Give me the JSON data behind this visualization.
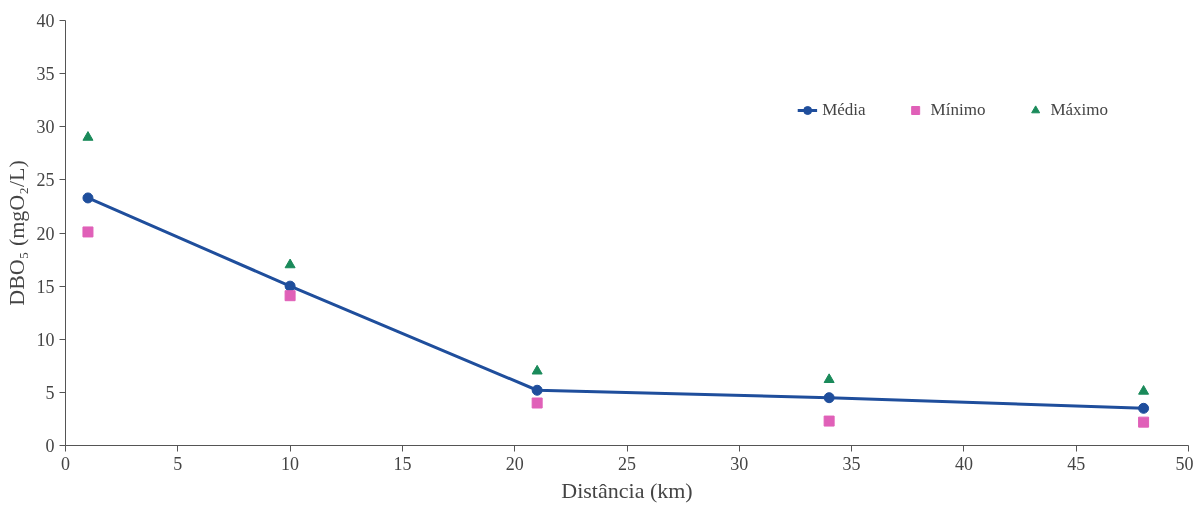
{
  "chart_data": {
    "type": "line",
    "xlabel": "Distância (km)",
    "ylabel": "DBO₅ (mgO₂/L)",
    "x": [
      1,
      10,
      21,
      34,
      48
    ],
    "series": [
      {
        "name": "Média",
        "marker": "circle",
        "color": "#1f4e9c",
        "values": [
          23.3,
          15.0,
          5.2,
          4.5,
          3.5
        ]
      },
      {
        "name": "Mínimo",
        "type": "scatter",
        "marker": "square",
        "color": "#e060b8",
        "values": [
          20.1,
          14.1,
          4.0,
          2.3,
          2.2
        ]
      },
      {
        "name": "Máximo",
        "type": "scatter",
        "marker": "triangle",
        "color": "#1a8a5a",
        "values": [
          29.0,
          17.0,
          7.0,
          6.2,
          5.1
        ]
      }
    ],
    "xlim": [
      0,
      50
    ],
    "xticks": [
      0,
      5,
      10,
      15,
      20,
      25,
      30,
      35,
      40,
      45,
      50
    ],
    "ylim": [
      0,
      40
    ],
    "yticks": [
      0,
      5,
      10,
      15,
      20,
      25,
      30,
      35,
      40
    ],
    "grid": false,
    "legend": "top right",
    "line_style": "solid"
  }
}
